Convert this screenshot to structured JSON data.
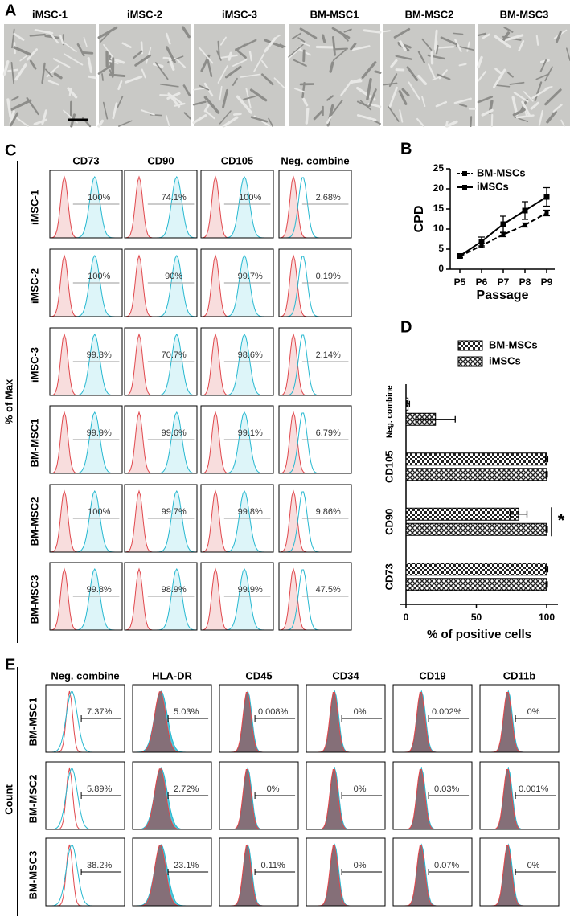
{
  "panel_labels": [
    "A",
    "B",
    "C",
    "D",
    "E"
  ],
  "panel_a": {
    "images": [
      "iMSC-1",
      "iMSC-2",
      "iMSC-3",
      "BM-MSC1",
      "BM-MSC2",
      "BM-MSC3"
    ]
  },
  "panel_c": {
    "y_label": "% of Max",
    "columns": [
      "CD73",
      "CD90",
      "CD105",
      "Neg. combine"
    ],
    "rows": [
      {
        "name": "iMSC-1",
        "values": [
          "100%",
          "74.1%",
          "100%",
          "2.68%"
        ]
      },
      {
        "name": "iMSC-2",
        "values": [
          "100%",
          "90%",
          "99.7%",
          "0.19%"
        ]
      },
      {
        "name": "iMSC-3",
        "values": [
          "99.3%",
          "70.7%",
          "98.6%",
          "2.14%"
        ]
      },
      {
        "name": "BM-MSC1",
        "values": [
          "99.9%",
          "99.6%",
          "99.1%",
          "6.79%"
        ]
      },
      {
        "name": "BM-MSC2",
        "values": [
          "100%",
          "99.7%",
          "99.8%",
          "9.86%"
        ]
      },
      {
        "name": "BM-MSC3",
        "values": [
          "99.8%",
          "98.9%",
          "99.9%",
          "47.5%"
        ]
      }
    ]
  },
  "chart_data": [
    {
      "type": "line",
      "x_label": "Passage",
      "y_label": "CPD",
      "categories": [
        "P5",
        "P6",
        "P7",
        "P8",
        "P9"
      ],
      "ylim": [
        0,
        25
      ],
      "yticks": [
        0,
        5,
        10,
        15,
        20,
        25
      ],
      "legend": "upper left",
      "series": [
        {
          "name": "BM-MSCs",
          "color": "#000000",
          "dashed": true,
          "values": [
            3.2,
            5.9,
            8.6,
            11,
            14
          ],
          "errors": [
            0.3,
            0.5,
            0.5,
            0.5,
            0.7
          ]
        },
        {
          "name": "iMSCs",
          "color": "#000000",
          "dashed": false,
          "values": [
            3.3,
            6.9,
            11.2,
            14.6,
            18
          ],
          "errors": [
            0.5,
            1.1,
            2,
            2.2,
            2.3
          ]
        }
      ]
    },
    {
      "type": "hbar",
      "x_label": "% of positive cells",
      "categories": [
        "Neg. combine",
        "CD105",
        "CD90",
        "CD73"
      ],
      "xlim": [
        -4,
        108
      ],
      "xticks": [
        0,
        50,
        100
      ],
      "legend": "top",
      "annotation": "*",
      "series": [
        {
          "name": "BM-MSCs",
          "pattern": "checker",
          "values": [
            1.5,
            100,
            80,
            100
          ],
          "errors": [
            1,
            0.8,
            6,
            0.8
          ]
        },
        {
          "name": "iMSCs",
          "pattern": "weave",
          "values": [
            21,
            100,
            100,
            100
          ],
          "errors": [
            14,
            0.5,
            0.5,
            0.5
          ]
        }
      ]
    }
  ],
  "panel_e": {
    "y_label": "Count",
    "columns": [
      "Neg. combine",
      "HLA-DR",
      "CD45",
      "CD34",
      "CD19",
      "CD11b"
    ],
    "rows": [
      {
        "name": "BM-MSC1",
        "values": [
          "7.37%",
          "5.03%",
          "0.008%",
          "0%",
          "0.002%",
          "0%"
        ]
      },
      {
        "name": "BM-MSC2",
        "values": [
          "5.89%",
          "2.72%",
          "0%",
          "0%",
          "0.03%",
          "0.001%"
        ]
      },
      {
        "name": "BM-MSC3",
        "values": [
          "38.2%",
          "23.1%",
          "0.11%",
          "0%",
          "0.07%",
          "0%"
        ]
      }
    ]
  }
}
